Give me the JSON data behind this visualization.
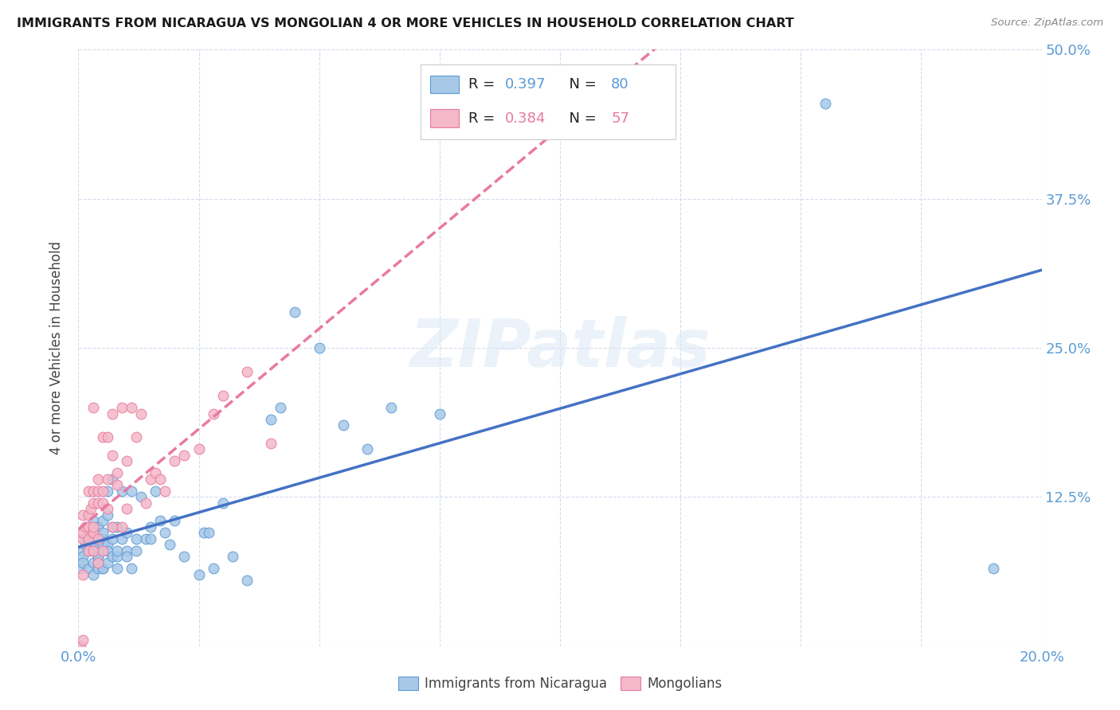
{
  "title": "IMMIGRANTS FROM NICARAGUA VS MONGOLIAN 4 OR MORE VEHICLES IN HOUSEHOLD CORRELATION CHART",
  "source": "Source: ZipAtlas.com",
  "ylabel": "4 or more Vehicles in Household",
  "xlim": [
    0.0,
    0.2
  ],
  "ylim": [
    0.0,
    0.5
  ],
  "color_nicaragua": "#a8c8e8",
  "color_nicaragua_edge": "#5b9bd5",
  "color_mongolian": "#f4b8c8",
  "color_mongolian_edge": "#e87a9f",
  "color_trend_nicaragua": "#4472c4",
  "color_trend_mongolian": "#e87a9f",
  "watermark": "ZIPatlas",
  "nicaragua_x": [
    0.0005,
    0.001,
    0.001,
    0.001,
    0.0015,
    0.0015,
    0.002,
    0.002,
    0.002,
    0.002,
    0.0025,
    0.003,
    0.003,
    0.003,
    0.003,
    0.003,
    0.003,
    0.0035,
    0.004,
    0.004,
    0.004,
    0.004,
    0.004,
    0.004,
    0.0045,
    0.005,
    0.005,
    0.005,
    0.005,
    0.005,
    0.005,
    0.006,
    0.006,
    0.006,
    0.006,
    0.006,
    0.007,
    0.007,
    0.007,
    0.007,
    0.008,
    0.008,
    0.008,
    0.008,
    0.009,
    0.009,
    0.01,
    0.01,
    0.01,
    0.011,
    0.011,
    0.012,
    0.012,
    0.013,
    0.014,
    0.015,
    0.015,
    0.016,
    0.017,
    0.018,
    0.019,
    0.02,
    0.022,
    0.025,
    0.026,
    0.027,
    0.028,
    0.03,
    0.032,
    0.035,
    0.04,
    0.042,
    0.045,
    0.05,
    0.055,
    0.06,
    0.065,
    0.075,
    0.155,
    0.19
  ],
  "nicaragua_y": [
    0.065,
    0.08,
    0.075,
    0.07,
    0.085,
    0.09,
    0.08,
    0.09,
    0.085,
    0.065,
    0.095,
    0.07,
    0.08,
    0.095,
    0.105,
    0.06,
    0.09,
    0.085,
    0.075,
    0.07,
    0.08,
    0.1,
    0.075,
    0.065,
    0.085,
    0.09,
    0.065,
    0.085,
    0.095,
    0.105,
    0.065,
    0.11,
    0.07,
    0.085,
    0.13,
    0.08,
    0.1,
    0.09,
    0.14,
    0.075,
    0.075,
    0.1,
    0.08,
    0.065,
    0.09,
    0.13,
    0.08,
    0.095,
    0.075,
    0.065,
    0.13,
    0.08,
    0.09,
    0.125,
    0.09,
    0.1,
    0.09,
    0.13,
    0.105,
    0.095,
    0.085,
    0.105,
    0.075,
    0.06,
    0.095,
    0.095,
    0.065,
    0.12,
    0.075,
    0.055,
    0.19,
    0.2,
    0.28,
    0.25,
    0.185,
    0.165,
    0.2,
    0.195,
    0.455,
    0.065
  ],
  "mongolian_x": [
    0.0003,
    0.0005,
    0.001,
    0.001,
    0.001,
    0.001,
    0.001,
    0.0015,
    0.002,
    0.002,
    0.002,
    0.002,
    0.002,
    0.0025,
    0.003,
    0.003,
    0.003,
    0.003,
    0.003,
    0.003,
    0.003,
    0.004,
    0.004,
    0.004,
    0.004,
    0.004,
    0.005,
    0.005,
    0.005,
    0.005,
    0.006,
    0.006,
    0.006,
    0.007,
    0.007,
    0.007,
    0.008,
    0.008,
    0.009,
    0.009,
    0.01,
    0.01,
    0.011,
    0.012,
    0.013,
    0.014,
    0.015,
    0.016,
    0.017,
    0.018,
    0.02,
    0.022,
    0.025,
    0.028,
    0.03,
    0.035,
    0.04
  ],
  "mongolian_y": [
    0.0,
    0.0,
    0.005,
    0.06,
    0.09,
    0.095,
    0.11,
    0.1,
    0.09,
    0.11,
    0.1,
    0.13,
    0.08,
    0.115,
    0.08,
    0.095,
    0.095,
    0.1,
    0.12,
    0.13,
    0.2,
    0.07,
    0.09,
    0.13,
    0.12,
    0.14,
    0.08,
    0.12,
    0.13,
    0.175,
    0.115,
    0.14,
    0.175,
    0.1,
    0.16,
    0.195,
    0.135,
    0.145,
    0.1,
    0.2,
    0.115,
    0.155,
    0.2,
    0.175,
    0.195,
    0.12,
    0.14,
    0.145,
    0.14,
    0.13,
    0.155,
    0.16,
    0.165,
    0.195,
    0.21,
    0.23,
    0.17
  ]
}
